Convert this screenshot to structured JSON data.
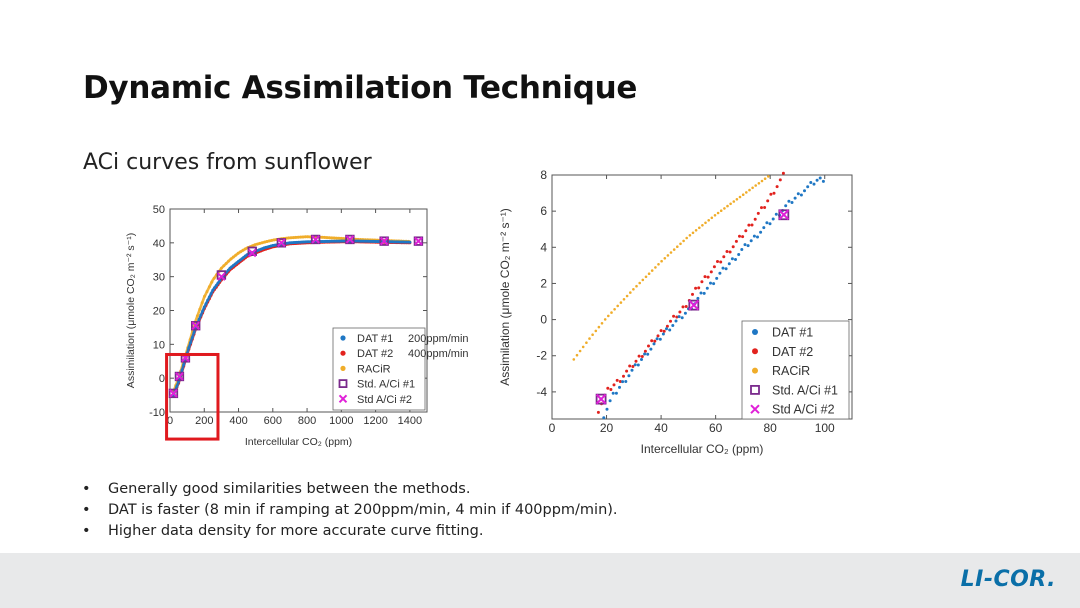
{
  "slide": {
    "title": "Dynamic Assimilation Technique",
    "subtitle": "ACi curves from sunflower",
    "bullets": [
      "Generally good similarities between the methods.",
      "DAT is faster (8 min if ramping at 200ppm/min, 4 min if 400ppm/min).",
      "Higher data density for more accurate curve fitting."
    ],
    "logo": "LI-COR."
  },
  "colors": {
    "dat1": "#1f77c4",
    "dat2": "#e2221e",
    "racir": "#f0ad2a",
    "std1": "#7a2a8c",
    "std2": "#e020d8",
    "highlight_box": "#e0191e"
  },
  "chart_data": [
    {
      "type": "line",
      "xlabel": "Intercellular CO₂ (ppm)",
      "ylabel": "Assimilation (μmole CO₂ m⁻² s⁻¹)",
      "xlim": [
        0,
        1500
      ],
      "ylim": [
        -10,
        50
      ],
      "x_ticks": [
        0,
        200,
        400,
        600,
        800,
        1000,
        1200,
        1400
      ],
      "y_ticks": [
        -10,
        0,
        10,
        20,
        30,
        40,
        50
      ],
      "legend_position": "lower-right",
      "legend": [
        {
          "label": "DAT #1",
          "note": "200ppm/min"
        },
        {
          "label": "DAT #2",
          "note": "400ppm/min"
        },
        {
          "label": "RACiR",
          "note": ""
        },
        {
          "label": "Std. A/Ci #1",
          "note": ""
        },
        {
          "label": "Std A/Ci #2",
          "note": ""
        }
      ],
      "highlight_region": {
        "x": [
          -20,
          280
        ],
        "y": [
          -18,
          7
        ]
      },
      "series": [
        {
          "name": "DAT #1",
          "x": [
            20,
            50,
            80,
            110,
            150,
            200,
            250,
            300,
            350,
            400,
            450,
            500,
            550,
            600,
            650,
            700,
            800,
            900,
            1000,
            1100,
            1200,
            1300,
            1400
          ],
          "y": [
            -5,
            -1,
            4,
            9,
            15,
            21,
            26,
            29.5,
            32.5,
            34.5,
            36.5,
            37.5,
            38.5,
            39.2,
            39.6,
            40,
            40.3,
            40.4,
            40.5,
            40.5,
            40.4,
            40.3,
            40.2
          ]
        },
        {
          "name": "DAT #2",
          "x": [
            20,
            50,
            80,
            110,
            150,
            200,
            250,
            300,
            350,
            400,
            450,
            500,
            550,
            600,
            650,
            700,
            800,
            900,
            1000,
            1100,
            1200,
            1300,
            1400
          ],
          "y": [
            -5,
            -1.5,
            3.5,
            8.5,
            14.5,
            20.5,
            25.5,
            29,
            32,
            34,
            36,
            37,
            38,
            38.8,
            39.3,
            39.7,
            40,
            40.2,
            40.3,
            40.3,
            40.2,
            40.1,
            40
          ]
        },
        {
          "name": "RACiR",
          "x": [
            20,
            50,
            80,
            110,
            150,
            200,
            250,
            300,
            350,
            400,
            450,
            500,
            550,
            600,
            650,
            700,
            800,
            900,
            1000,
            1100,
            1200,
            1300,
            1400
          ],
          "y": [
            -4,
            0,
            5,
            10,
            17,
            24,
            29,
            32.5,
            35,
            37,
            38.5,
            39.5,
            40.2,
            40.8,
            41.2,
            41.5,
            41.8,
            41.6,
            41.3,
            41,
            40.8,
            40.6,
            40.4
          ]
        },
        {
          "name": "Std. A/Ci #1",
          "x": [
            20,
            55,
            90,
            150,
            300,
            480,
            650,
            850,
            1050,
            1250,
            1450
          ],
          "y": [
            -4.5,
            0.5,
            6,
            15.5,
            30.5,
            37.5,
            40,
            41,
            41,
            40.5,
            40.5
          ]
        },
        {
          "name": "Std A/Ci #2",
          "x": [
            20,
            55,
            90,
            150,
            300,
            480,
            650,
            850,
            1050,
            1250,
            1450
          ],
          "y": [
            -4.5,
            0.5,
            6,
            15.5,
            30,
            37,
            40,
            41,
            41,
            40.5,
            40.5
          ]
        }
      ]
    },
    {
      "type": "scatter",
      "xlabel": "Intercellular CO₂ (ppm)",
      "ylabel": "Assimilation (μmole CO₂ m⁻² s⁻¹)",
      "xlim": [
        0,
        110
      ],
      "ylim": [
        -5.5,
        8
      ],
      "x_ticks": [
        0,
        20,
        40,
        60,
        80,
        100
      ],
      "y_ticks": [
        -4,
        -2,
        0,
        2,
        4,
        6,
        8
      ],
      "legend_position": "lower-right",
      "legend": [
        {
          "label": "DAT #1"
        },
        {
          "label": "DAT #2"
        },
        {
          "label": "RACiR"
        },
        {
          "label": "Std. A/Ci #1"
        },
        {
          "label": "Std A/Ci #2"
        }
      ],
      "series": [
        {
          "name": "DAT #1",
          "x": [
            19,
            22,
            28,
            35,
            42,
            50,
            55,
            62,
            70,
            78,
            86,
            92,
            97,
            100
          ],
          "y": [
            -5.3,
            -4.3,
            -3.1,
            -1.8,
            -0.6,
            0.5,
            1.4,
            2.6,
            3.9,
            5.1,
            6.3,
            7.1,
            7.7,
            7.8
          ]
        },
        {
          "name": "DAT #2",
          "x": [
            17,
            20,
            25,
            32,
            40,
            48,
            55,
            62,
            70,
            78,
            85
          ],
          "y": [
            -5,
            -4,
            -3.3,
            -2.1,
            -0.7,
            0.6,
            2.1,
            3.3,
            4.7,
            6.3,
            8
          ]
        },
        {
          "name": "RACiR",
          "x": [
            8,
            14,
            20,
            30,
            40,
            50,
            60,
            70,
            80
          ],
          "y": [
            -2.2,
            -1,
            0.1,
            1.7,
            3.2,
            4.6,
            5.8,
            6.9,
            8
          ]
        },
        {
          "name": "Std. A/Ci #1",
          "x": [
            18,
            52,
            85
          ],
          "y": [
            -4.4,
            0.8,
            5.8
          ]
        },
        {
          "name": "Std A/Ci #2",
          "x": [
            18,
            52,
            85
          ],
          "y": [
            -4.4,
            0.8,
            5.8
          ]
        }
      ]
    }
  ]
}
